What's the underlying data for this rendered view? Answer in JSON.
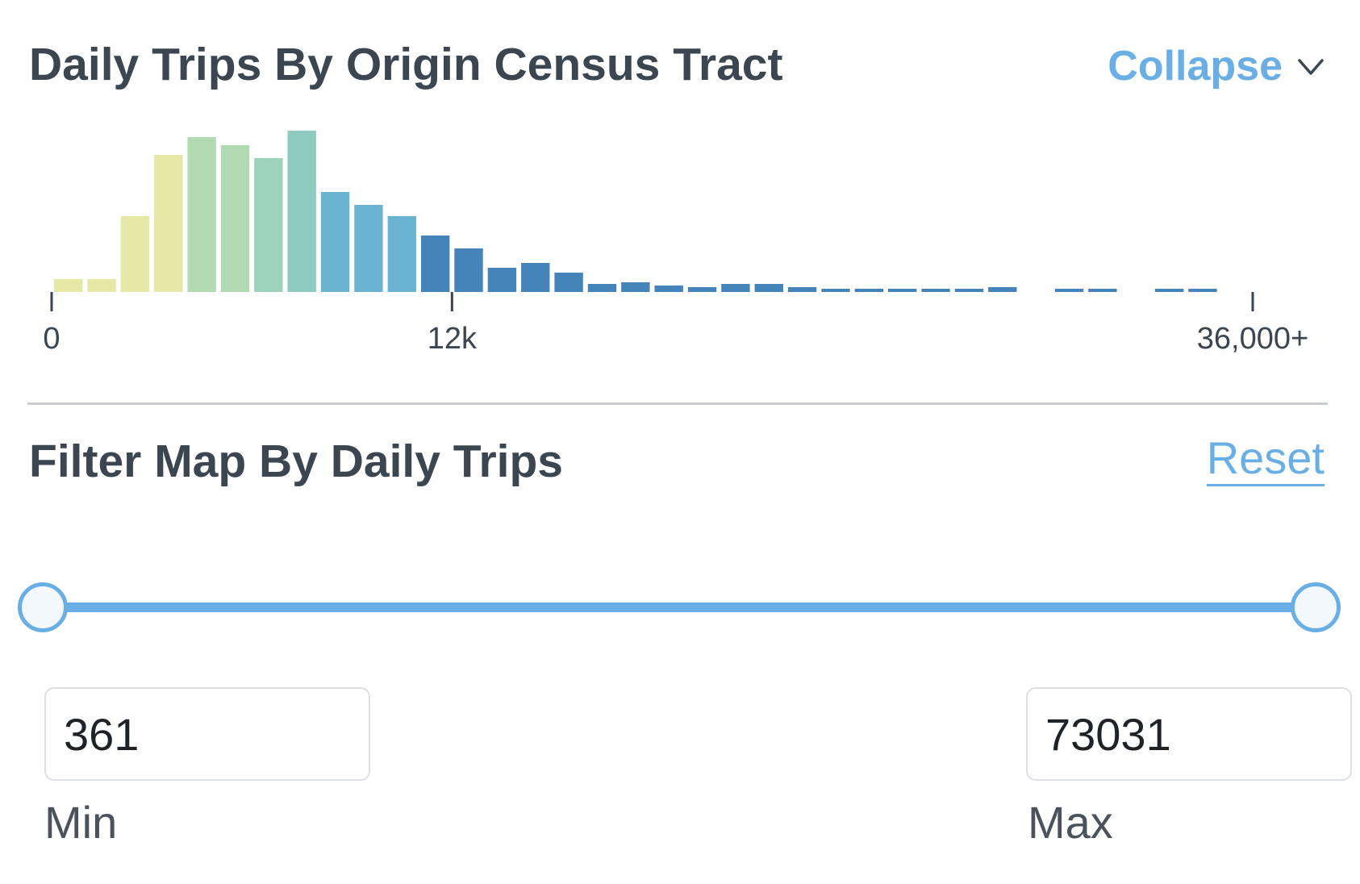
{
  "histogram_panel": {
    "title": "Daily Trips By Origin Census Tract",
    "collapse_label": "Collapse",
    "collapse_icon": "chevron-down-icon"
  },
  "filter_panel": {
    "title": "Filter Map By Daily Trips",
    "reset_label": "Reset",
    "slider": {
      "min_fraction": 0,
      "max_fraction": 1
    },
    "min_value": "361",
    "min_label": "Min",
    "max_value": "73031",
    "max_label": "Max"
  },
  "chart_data": {
    "type": "bar",
    "title": "",
    "xlabel": "",
    "ylabel": "",
    "xlim": [
      0,
      36000
    ],
    "ylim": [
      0,
      100
    ],
    "bin_width": 1000,
    "x": [
      500,
      1500,
      2500,
      3500,
      4500,
      5500,
      6500,
      7500,
      8500,
      9500,
      10500,
      11500,
      12500,
      13500,
      14500,
      15500,
      16500,
      17500,
      18500,
      19500,
      20500,
      21500,
      22500,
      23500,
      24500,
      25500,
      26500,
      27500,
      28500,
      29500,
      30500,
      31500,
      32500,
      33500,
      34500
    ],
    "values": [
      8,
      8,
      47,
      85,
      96,
      91,
      83,
      100,
      62,
      54,
      47,
      35,
      27,
      15,
      18,
      12,
      5,
      6,
      4,
      3,
      5,
      5,
      3,
      2,
      1,
      1,
      1,
      1,
      3,
      0,
      1,
      1,
      0,
      1,
      1
    ],
    "bar_colors": [
      "#e6e8a6",
      "#e6e8a6",
      "#e6e8a6",
      "#e6e8a6",
      "#b1d9b2",
      "#b1d9b2",
      "#9dd3bd",
      "#8ecbbf",
      "#6bb4d1",
      "#6bb4d1",
      "#6bb4d1",
      "#4584ba",
      "#4584ba",
      "#4584ba",
      "#4584ba",
      "#4584ba",
      "#4584ba",
      "#4584ba",
      "#4584ba",
      "#4584ba",
      "#4584ba",
      "#4584ba",
      "#4584ba",
      "#4584ba",
      "#4584ba",
      "#4584ba",
      "#4584ba",
      "#4584ba",
      "#4584ba",
      "#4584ba",
      "#4584ba",
      "#4584ba",
      "#4584ba",
      "#4584ba",
      "#4584ba"
    ],
    "ticks": [
      {
        "value": 0,
        "label": "0"
      },
      {
        "value": 12000,
        "label": "12k"
      },
      {
        "value": 36000,
        "label": "36,000+"
      }
    ],
    "grid": false,
    "legend": "none"
  }
}
